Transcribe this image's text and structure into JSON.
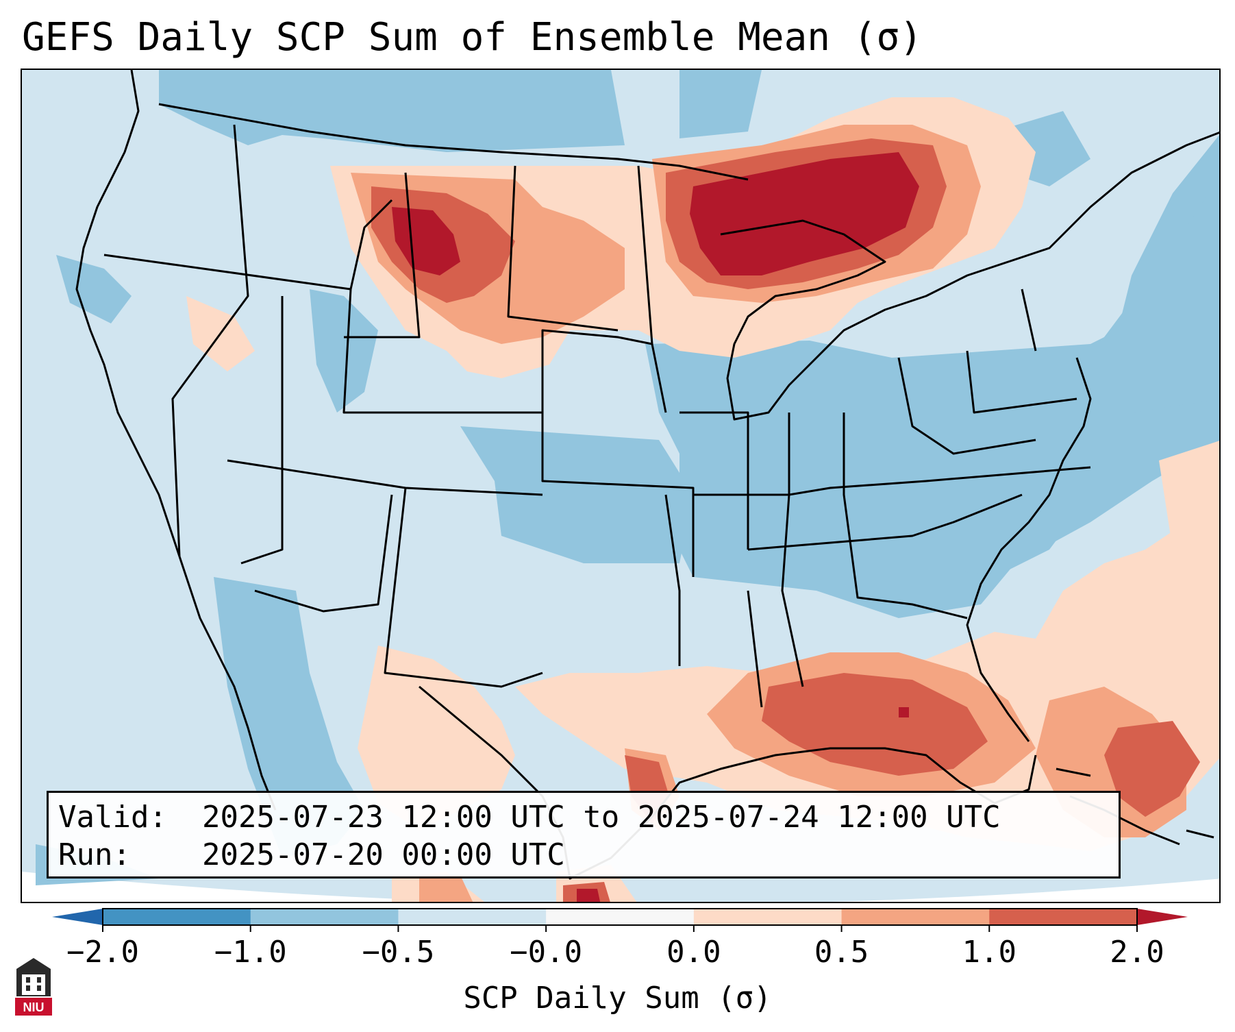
{
  "title": "GEFS Daily SCP Sum of Ensemble Mean (σ)",
  "info": {
    "valid_label": "Valid:",
    "valid_value": "2025-07-23 12:00 UTC to 2025-07-24 12:00 UTC",
    "run_label": "Run:",
    "run_value": "2025-07-20 00:00 UTC"
  },
  "colorbar": {
    "label": "SCP Daily Sum (σ)",
    "ticks": [
      "−2.0",
      "−1.0",
      "−0.5",
      "−0.0",
      "0.0",
      "0.5",
      "1.0",
      "2.0"
    ],
    "segment_colors": [
      "#4393c3",
      "#92c5de",
      "#d1e5f0",
      "#f7f7f7",
      "#fddbc7",
      "#f4a582",
      "#d6604d"
    ],
    "extend_low_color": "#2166ac",
    "extend_high_color": "#b2182b"
  },
  "colors": {
    "ocean_background": "#d1e5f0",
    "land_neutral": "#d1e5f0",
    "negative_moderate": "#92c5de",
    "positive_weak": "#fddbc7",
    "positive_moderate": "#f4a582",
    "positive_strong": "#d6604d",
    "positive_extreme": "#b2182b"
  },
  "logo": {
    "name": "niu-logo",
    "text": "NIU"
  }
}
